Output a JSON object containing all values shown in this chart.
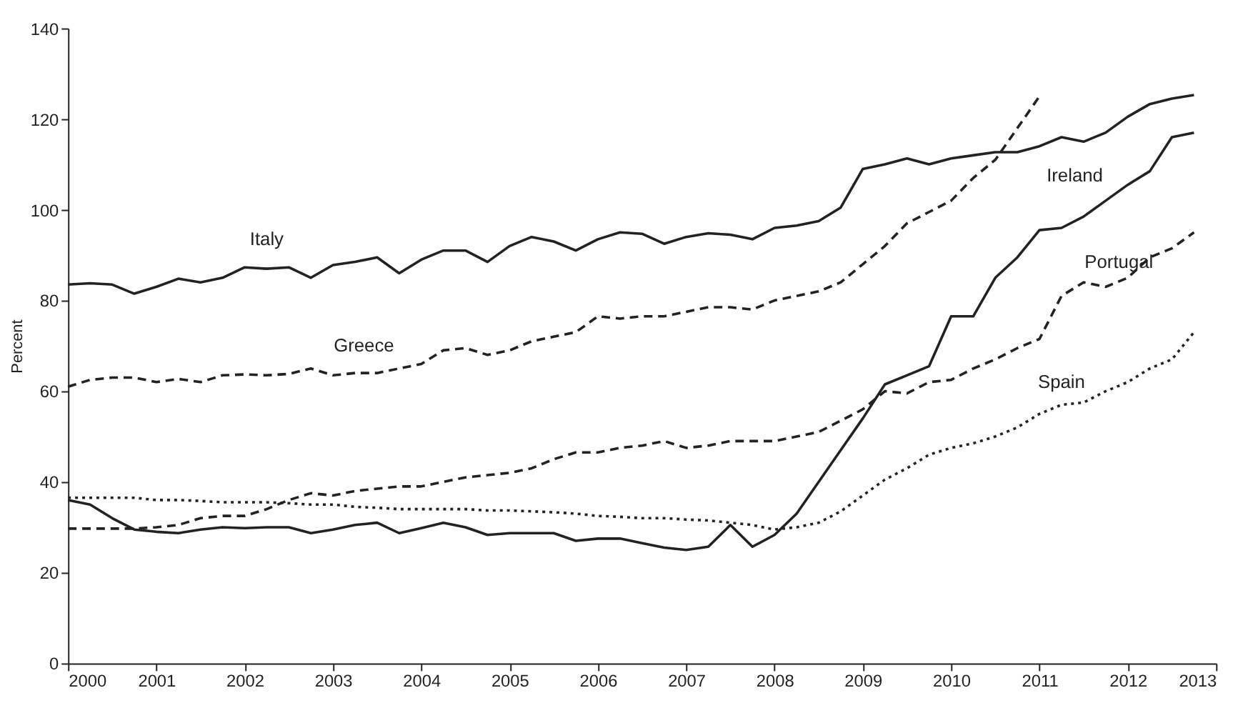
{
  "chart_data": {
    "type": "line",
    "ylabel": "Percent",
    "x": [
      2000,
      2000.25,
      2000.5,
      2000.75,
      2001,
      2001.25,
      2001.5,
      2001.75,
      2002,
      2002.25,
      2002.5,
      2002.75,
      2003,
      2003.25,
      2003.5,
      2003.75,
      2004,
      2004.25,
      2004.5,
      2004.75,
      2005,
      2005.25,
      2005.5,
      2005.75,
      2006,
      2006.25,
      2006.5,
      2006.75,
      2007,
      2007.25,
      2007.5,
      2007.75,
      2008,
      2008.25,
      2008.5,
      2008.75,
      2009,
      2009.25,
      2009.5,
      2009.75,
      2010,
      2010.25,
      2010.5,
      2010.75,
      2011,
      2011.25,
      2011.5,
      2011.75,
      2012,
      2012.25,
      2012.5,
      2012.75
    ],
    "series": [
      {
        "name": "Italy",
        "color": "#222222",
        "line_style": "solid",
        "values": [
          83.5,
          83.8,
          83.5,
          81.5,
          83,
          84.8,
          84,
          85,
          87.3,
          87,
          87.3,
          85,
          87.8,
          88.5,
          89.5,
          86,
          89,
          91,
          91,
          88.5,
          92,
          94,
          93,
          91,
          93.5,
          95,
          94.7,
          92.5,
          94,
          94.8,
          94.5,
          93.5,
          96,
          96.5,
          97.5,
          100.5,
          109,
          110,
          111.3,
          110,
          111.3,
          112,
          112.7,
          112.7,
          114,
          116,
          115,
          117,
          120.5,
          123.3,
          124.5,
          125.3
        ]
      },
      {
        "name": "Greece",
        "color": "#222222",
        "line_style": "dashed",
        "values": [
          61,
          62.5,
          63,
          63,
          62,
          62.7,
          62,
          63.5,
          63.7,
          63.5,
          63.8,
          65,
          63.5,
          64,
          64,
          65,
          66,
          69,
          69.5,
          68,
          69,
          71,
          72,
          73,
          76.5,
          76,
          76.5,
          76.5,
          77.5,
          78.5,
          78.5,
          78,
          80,
          81,
          82,
          84,
          88,
          92,
          97,
          99.5,
          102,
          107,
          111,
          118,
          125,
          null,
          null,
          null,
          null,
          null,
          null,
          null
        ]
      },
      {
        "name": "Ireland",
        "color": "#222222",
        "line_style": "solid",
        "values": [
          36,
          35,
          32,
          29.5,
          29,
          28.7,
          29.5,
          30,
          29.8,
          30,
          30,
          28.7,
          29.5,
          30.5,
          31,
          28.7,
          29.8,
          31,
          30,
          28.3,
          28.7,
          28.7,
          28.7,
          27,
          27.5,
          27.5,
          26.5,
          25.5,
          25,
          25.7,
          30.5,
          25.7,
          28.3,
          33,
          40,
          47,
          54,
          61.5,
          63.5,
          65.5,
          76.5,
          76.5,
          85,
          89.5,
          95.5,
          96,
          98.5,
          102,
          105.5,
          108.5,
          116,
          117
        ]
      },
      {
        "name": "Portugal",
        "color": "#222222",
        "line_style": "dashed",
        "values": [
          29.7,
          29.7,
          29.7,
          29.7,
          30,
          30.5,
          32,
          32.5,
          32.5,
          34,
          36,
          37.5,
          37,
          38,
          38.5,
          39,
          39,
          40,
          41,
          41.5,
          42,
          43,
          45,
          46.5,
          46.5,
          47.5,
          48,
          49,
          47.5,
          48,
          49,
          49,
          49,
          50,
          51,
          53.5,
          56,
          60,
          59.5,
          62,
          62.5,
          65,
          67,
          69.5,
          71.5,
          81,
          84,
          83,
          85,
          89.5,
          91.5,
          95
        ]
      },
      {
        "name": "Spain",
        "color": "#222222",
        "line_style": "dotted",
        "values": [
          36.5,
          36.5,
          36.5,
          36.5,
          36,
          36,
          35.8,
          35.5,
          35.5,
          35.5,
          35.3,
          35,
          35,
          34.5,
          34.3,
          34,
          34,
          34,
          34,
          33.7,
          33.7,
          33.5,
          33.3,
          33,
          32.5,
          32.3,
          32,
          32,
          31.7,
          31.5,
          31,
          30.5,
          29.5,
          30,
          31,
          33.5,
          37,
          40.5,
          43,
          46,
          47.5,
          48.5,
          50,
          52,
          55,
          57,
          57.5,
          60,
          62,
          65,
          67,
          73
        ]
      }
    ],
    "xlim": [
      2000,
      2013
    ],
    "xticks": [
      2000,
      2001,
      2002,
      2003,
      2004,
      2005,
      2006,
      2007,
      2008,
      2009,
      2010,
      2011,
      2012,
      2013
    ],
    "ylim": [
      0,
      140
    ],
    "yticks": [
      0,
      20,
      40,
      60,
      80,
      100,
      120,
      140
    ],
    "grid": false,
    "marker": "none"
  }
}
